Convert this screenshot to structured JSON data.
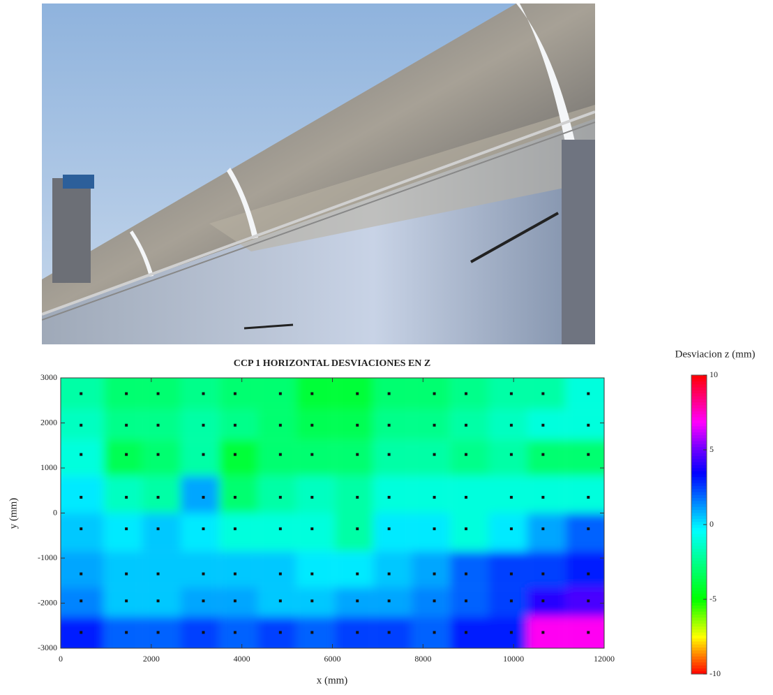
{
  "chart_data": {
    "type": "heatmap",
    "title": "CCP 1 HORIZONTAL DESVIACIONES EN Z",
    "x_label": "x (mm)",
    "y_label": "y (mm)",
    "colorbar_label": "Desviacion z (mm)",
    "xlim": [
      0,
      12000
    ],
    "ylim": [
      -3000,
      3000
    ],
    "xticks": [
      0,
      2000,
      4000,
      6000,
      8000,
      10000,
      12000
    ],
    "yticks": [
      -3000,
      -2000,
      -1000,
      0,
      1000,
      2000,
      3000
    ],
    "zlim": [
      -10,
      10
    ],
    "zticks": [
      -10,
      -5,
      0,
      5,
      10
    ],
    "x": [
      450,
      1450,
      2150,
      3150,
      3850,
      4850,
      5550,
      6550,
      7250,
      8250,
      8950,
      9950,
      10650,
      11650
    ],
    "y": [
      2650,
      1950,
      1300,
      350,
      -350,
      -1350,
      -1950,
      -2650
    ],
    "values": [
      [
        -2,
        -3,
        -3,
        -2.5,
        -3,
        -3,
        -4,
        -4,
        -3,
        -3,
        -2.5,
        -2,
        -2,
        -1
      ],
      [
        -1.5,
        -2.5,
        -2.5,
        -2,
        -2.5,
        -3,
        -3.5,
        -3.5,
        -2.5,
        -2.5,
        -2,
        -1.5,
        -1,
        -1
      ],
      [
        -1,
        -3.5,
        -3,
        -2,
        -4,
        -3,
        -3,
        -3,
        -2,
        -2,
        -2.5,
        -2,
        -3,
        -3
      ],
      [
        0,
        -1.5,
        -2,
        1,
        -3,
        -2,
        -1.5,
        -2,
        -1,
        -1,
        -1,
        -1,
        -1,
        -1
      ],
      [
        0.5,
        0,
        0.5,
        0,
        -1,
        -1,
        -1,
        -2,
        0,
        0,
        -1,
        0,
        1,
        2
      ],
      [
        1,
        0.5,
        0.5,
        0.5,
        0.5,
        0.5,
        0,
        0,
        0.5,
        1,
        2,
        2.5,
        2.5,
        3
      ],
      [
        1.5,
        0.5,
        0.5,
        1,
        1,
        0.5,
        0.5,
        1,
        1,
        1.5,
        2,
        2.5,
        4,
        4.5
      ],
      [
        3,
        2,
        2,
        2.5,
        2,
        2.5,
        2,
        2.5,
        2.5,
        2,
        3,
        3,
        7,
        7
      ]
    ]
  }
}
